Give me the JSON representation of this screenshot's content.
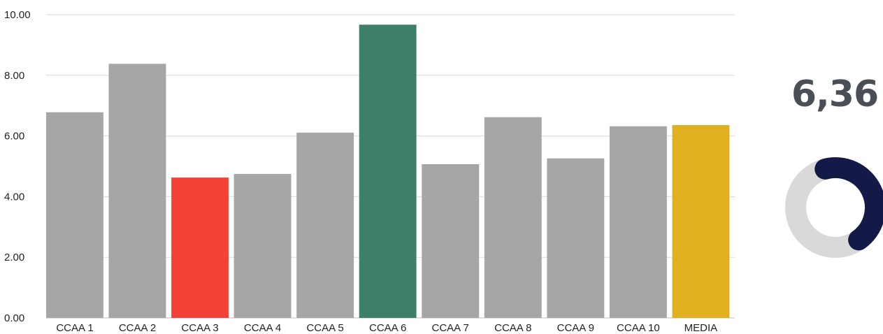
{
  "chart_data": {
    "type": "bar",
    "categories": [
      "CCAA 1",
      "CCAA 2",
      "CCAA 3",
      "CCAA 4",
      "CCAA 5",
      "CCAA 6",
      "CCAA 7",
      "CCAA 8",
      "CCAA 9",
      "CCAA 10",
      "MEDIA"
    ],
    "values": [
      6.78,
      8.38,
      4.63,
      4.75,
      6.11,
      9.67,
      5.07,
      6.62,
      5.26,
      6.32,
      6.36
    ],
    "colors": [
      "#a6a6a6",
      "#a6a6a6",
      "#f44336",
      "#a6a6a6",
      "#a6a6a6",
      "#3d7f68",
      "#a6a6a6",
      "#a6a6a6",
      "#a6a6a6",
      "#a6a6a6",
      "#e0b020"
    ],
    "y_ticks": [
      "0.00",
      "2.00",
      "4.00",
      "6.00",
      "8.00",
      "10.00"
    ],
    "ylim": [
      0,
      10
    ],
    "grid": true,
    "legend": "none",
    "title": "",
    "xlabel": "",
    "ylabel": ""
  },
  "kpi": {
    "value_label": "6,36",
    "fraction": 0.636,
    "ring_color": "#141a47",
    "track_color": "#d9d9d9"
  }
}
